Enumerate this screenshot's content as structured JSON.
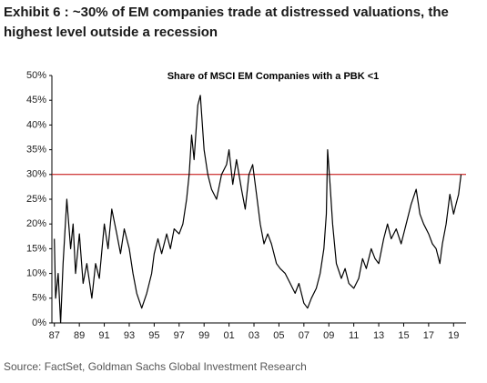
{
  "chart_data": {
    "type": "line",
    "title": "Exhibit 6 : ~30% of EM companies trade at distressed valuations, the highest level outside a recession",
    "subtitle": "Share of MSCI EM Companies with a PBK <1",
    "source": "Source: FactSet, Goldman Sachs Global Investment Research",
    "color": "#000000",
    "reference_line": 30,
    "reference_color": "#c00000",
    "x": [
      1987.0,
      1987.1,
      1987.3,
      1987.5,
      1987.7,
      1988.0,
      1988.3,
      1988.5,
      1988.7,
      1989.0,
      1989.3,
      1989.6,
      1990.0,
      1990.3,
      1990.6,
      1991.0,
      1991.3,
      1991.6,
      1992.0,
      1992.3,
      1992.6,
      1993.0,
      1993.3,
      1993.6,
      1994.0,
      1994.4,
      1994.8,
      1995.0,
      1995.3,
      1995.6,
      1996.0,
      1996.3,
      1996.6,
      1997.0,
      1997.3,
      1997.6,
      1997.8,
      1998.0,
      1998.2,
      1998.5,
      1998.7,
      1999.0,
      1999.3,
      1999.6,
      2000.0,
      2000.4,
      2000.8,
      2001.0,
      2001.3,
      2001.6,
      2002.0,
      2002.3,
      2002.6,
      2002.9,
      2003.2,
      2003.5,
      2003.8,
      2004.1,
      2004.4,
      2004.8,
      2005.1,
      2005.5,
      2005.9,
      2006.3,
      2006.6,
      2007.0,
      2007.3,
      2007.6,
      2008.0,
      2008.3,
      2008.6,
      2008.8,
      2008.9,
      2009.1,
      2009.3,
      2009.6,
      2010.0,
      2010.3,
      2010.6,
      2011.0,
      2011.4,
      2011.7,
      2012.0,
      2012.4,
      2012.7,
      2013.0,
      2013.4,
      2013.7,
      2014.0,
      2014.4,
      2014.8,
      2015.2,
      2015.6,
      2016.0,
      2016.3,
      2016.6,
      2017.0,
      2017.3,
      2017.6,
      2017.9,
      2018.1,
      2018.4,
      2018.7,
      2019.0,
      2019.2,
      2019.4,
      2019.6
    ],
    "values": [
      17,
      5,
      10,
      0,
      12,
      25,
      15,
      20,
      10,
      18,
      8,
      12,
      5,
      12,
      9,
      20,
      15,
      23,
      18,
      14,
      19,
      15,
      10,
      6,
      3,
      6,
      10,
      14,
      17,
      14,
      18,
      15,
      19,
      18,
      20,
      25,
      30,
      38,
      33,
      44,
      46,
      35,
      30,
      27,
      25,
      30,
      32,
      35,
      28,
      33,
      27,
      23,
      30,
      32,
      26,
      20,
      16,
      18,
      16,
      12,
      11,
      10,
      8,
      6,
      8,
      4,
      3,
      5,
      7,
      10,
      15,
      22,
      35,
      28,
      20,
      12,
      9,
      11,
      8,
      7,
      9,
      13,
      11,
      15,
      13,
      12,
      17,
      20,
      17,
      19,
      16,
      20,
      24,
      27,
      22,
      20,
      18,
      16,
      15,
      12,
      16,
      20,
      26,
      22,
      24,
      26,
      30
    ],
    "xlim": [
      1986.8,
      2020.0
    ],
    "xticks": [
      {
        "value": 1987,
        "label": "87"
      },
      {
        "value": 1989,
        "label": "89"
      },
      {
        "value": 1991,
        "label": "91"
      },
      {
        "value": 1993,
        "label": "93"
      },
      {
        "value": 1995,
        "label": "95"
      },
      {
        "value": 1997,
        "label": "97"
      },
      {
        "value": 1999,
        "label": "99"
      },
      {
        "value": 2001,
        "label": "01"
      },
      {
        "value": 2003,
        "label": "03"
      },
      {
        "value": 2005,
        "label": "05"
      },
      {
        "value": 2007,
        "label": "07"
      },
      {
        "value": 2009,
        "label": "09"
      },
      {
        "value": 2011,
        "label": "11"
      },
      {
        "value": 2013,
        "label": "13"
      },
      {
        "value": 2015,
        "label": "15"
      },
      {
        "value": 2017,
        "label": "17"
      },
      {
        "value": 2019,
        "label": "19"
      }
    ],
    "ylim": [
      0,
      50
    ],
    "yticks": [
      {
        "value": 0,
        "label": "0%"
      },
      {
        "value": 5,
        "label": "5%"
      },
      {
        "value": 10,
        "label": "10%"
      },
      {
        "value": 15,
        "label": "15%"
      },
      {
        "value": 20,
        "label": "20%"
      },
      {
        "value": 25,
        "label": "25%"
      },
      {
        "value": 30,
        "label": "30%"
      },
      {
        "value": 35,
        "label": "35%"
      },
      {
        "value": 40,
        "label": "40%"
      },
      {
        "value": 45,
        "label": "45%"
      },
      {
        "value": 50,
        "label": "50%"
      }
    ]
  }
}
